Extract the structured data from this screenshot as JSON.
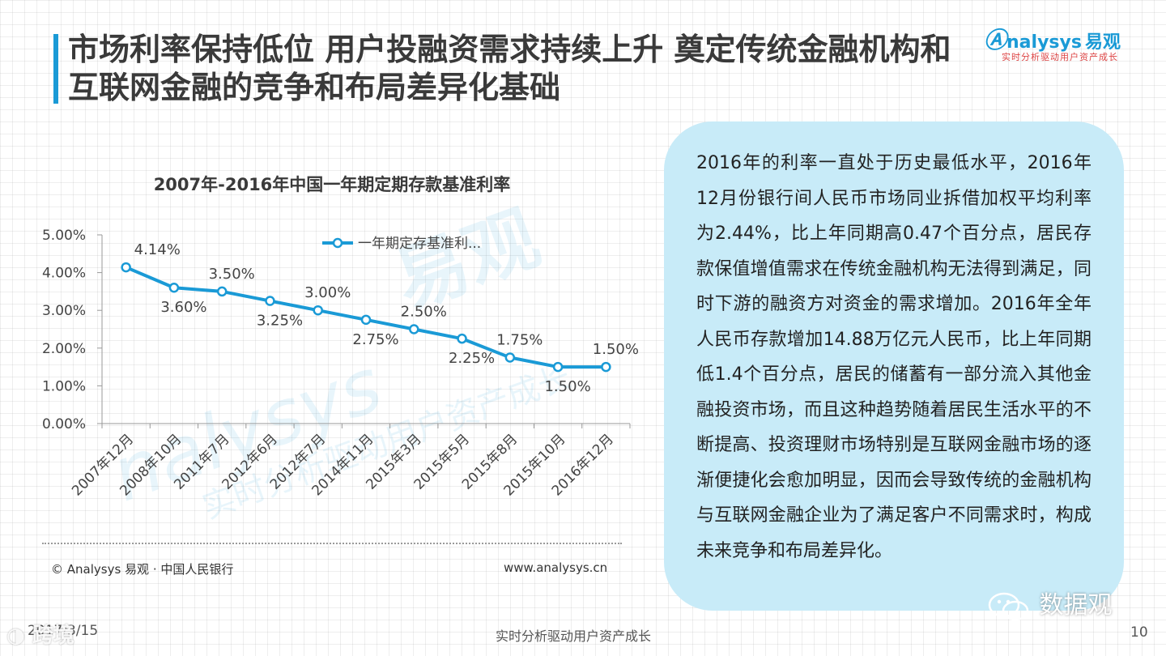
{
  "header": {
    "title": "市场利率保持低位  用户投融资需求持续上升 奠定传统金融机构和互联网金融的竞争和布局差异化基础",
    "logo_main": "nalysys",
    "logo_cn": "易观",
    "logo_sub": "实时分析驱动用户资产成长",
    "accent_color": "#1a9ad6"
  },
  "chart_data": {
    "type": "line",
    "title": "2007年-2016年中国一年期定期存款基准利率",
    "categories": [
      "2007年12月",
      "2008年10月",
      "2011年7月",
      "2012年6月",
      "2012年7月",
      "2014年11月",
      "2015年3月",
      "2015年5月",
      "2015年8月",
      "2015年10月",
      "2016年12月"
    ],
    "series": [
      {
        "name": "一年期定存基准利...",
        "values": [
          4.14,
          3.6,
          3.5,
          3.25,
          3.0,
          2.75,
          2.5,
          2.25,
          1.75,
          1.5,
          1.5
        ],
        "color": "#1a9ad6"
      }
    ],
    "data_labels": [
      "4.14%",
      "3.60%",
      "3.50%",
      "3.25%",
      "3.00%",
      "2.75%",
      "2.50%",
      "2.25%",
      "1.75%",
      "1.50%",
      "1.50%"
    ],
    "y_ticks": [
      "0.00%",
      "1.00%",
      "2.00%",
      "3.00%",
      "4.00%",
      "5.00%"
    ],
    "ylim": [
      0,
      5
    ],
    "legend_position": "top-right",
    "grid": false
  },
  "watermark": {
    "brand": "nalysys",
    "cn": "易观",
    "slogan": "实时分析驱动用户资产成长"
  },
  "chart_footer": {
    "source": "© Analysys 易观 · 中国人民银行",
    "website": "www.analysys.cn"
  },
  "textbox": {
    "paragraph": "2016年的利率一直处于历史最低水平，2016年12月份银行间人民币市场同业拆借加权平均利率为2.44%，比上年同期高0.47个百分点，居民存款保值增值需求在传统金融机构无法得到满足，同时下游的融资方对资金的需求增加。2016年全年人民币存款增加14.88万亿元人民币，比上年同期低1.4个百分点，居民的储蓄有一部分流入其他金融投资市场，而且这种趋势随着居民生活水平的不断提高、投资理财市场特别是互联网金融市场的逐渐便捷化会愈加明显，因而会导致传统的金融机构与互联网金融企业为了满足客户不同需求时，构成未来竞争和布局差异化。"
  },
  "footer": {
    "date": "2017/3/15",
    "slogan": "实时分析驱动用户资产成长",
    "page": "10",
    "wm_left": "跨境",
    "wm_right": "数据观"
  }
}
